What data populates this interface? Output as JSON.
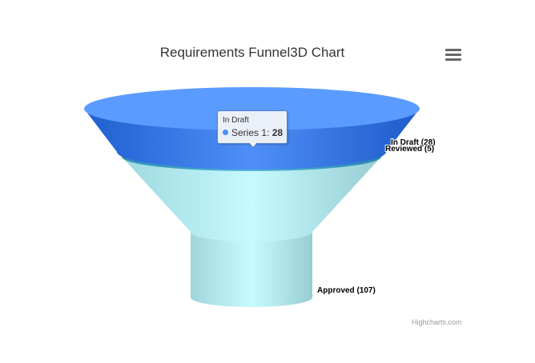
{
  "title": "Requirements Funnel3D Chart",
  "credits": "Highcharts.com",
  "menu_icon": "hamburger-menu-icon",
  "chart_data": {
    "type": "funnel3d",
    "title": "Requirements Funnel3D Chart",
    "series": [
      {
        "name": "Series 1",
        "points": [
          {
            "name": "In Draft",
            "value": 28,
            "color": "#4f8ff7"
          },
          {
            "name": "Reviewed",
            "value": 5,
            "color": "#3ea6cf"
          },
          {
            "name": "Approved",
            "value": 107,
            "color": "#a7e2e8"
          }
        ]
      }
    ],
    "data_labels": [
      "In Draft (28)",
      "Reviewed (5)",
      "Approved (107)"
    ]
  },
  "tooltip": {
    "header": "In Draft",
    "series_label": "Series 1: ",
    "value": "28",
    "dot_color": "#4f8ff7"
  }
}
